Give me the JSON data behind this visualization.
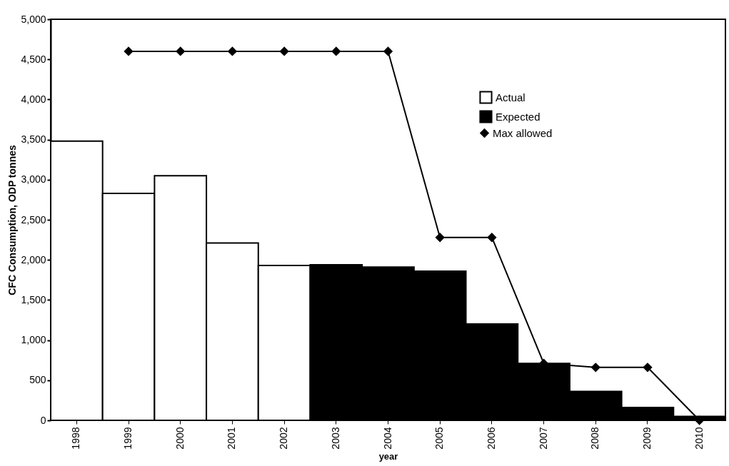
{
  "chart_data": {
    "type": "bar",
    "xlabel": "year",
    "ylabel": "CFC Consumption, ODP tonnes",
    "categories": [
      "1998",
      "1999",
      "2000",
      "2001",
      "2002",
      "2003",
      "2004",
      "2005",
      "2006",
      "2007",
      "2008",
      "2009",
      "2010"
    ],
    "series": [
      {
        "name": "Actual",
        "type": "bar",
        "color": "#ffffff",
        "values": [
          3480,
          2830,
          3050,
          2210,
          1930,
          null,
          null,
          null,
          null,
          null,
          null,
          null,
          null
        ]
      },
      {
        "name": "Expected",
        "type": "bar",
        "color": "#000000",
        "values": [
          null,
          null,
          null,
          null,
          null,
          1940,
          1910,
          1860,
          1200,
          710,
          360,
          160,
          50
        ]
      },
      {
        "name": "Max allowed",
        "type": "line",
        "color": "#000000",
        "marker": "diamond",
        "values": [
          null,
          4600,
          4600,
          4600,
          4600,
          4600,
          4600,
          2280,
          2280,
          710,
          660,
          660,
          0
        ]
      }
    ],
    "ylim": [
      0,
      5000
    ],
    "yticks": [
      {
        "value": 0,
        "label": "0"
      },
      {
        "value": 500,
        "label": "500"
      },
      {
        "value": 1000,
        "label": "1,000"
      },
      {
        "value": 1500,
        "label": "1,500"
      },
      {
        "value": 2000,
        "label": "2,000"
      },
      {
        "value": 2500,
        "label": "2,500"
      },
      {
        "value": 3000,
        "label": "3,000"
      },
      {
        "value": 3500,
        "label": "3,500"
      },
      {
        "value": 4000,
        "label": "4,000"
      },
      {
        "value": 4500,
        "label": "4,500"
      },
      {
        "value": 5000,
        "label": "5,000"
      }
    ],
    "grid": false,
    "legend": "top right"
  }
}
